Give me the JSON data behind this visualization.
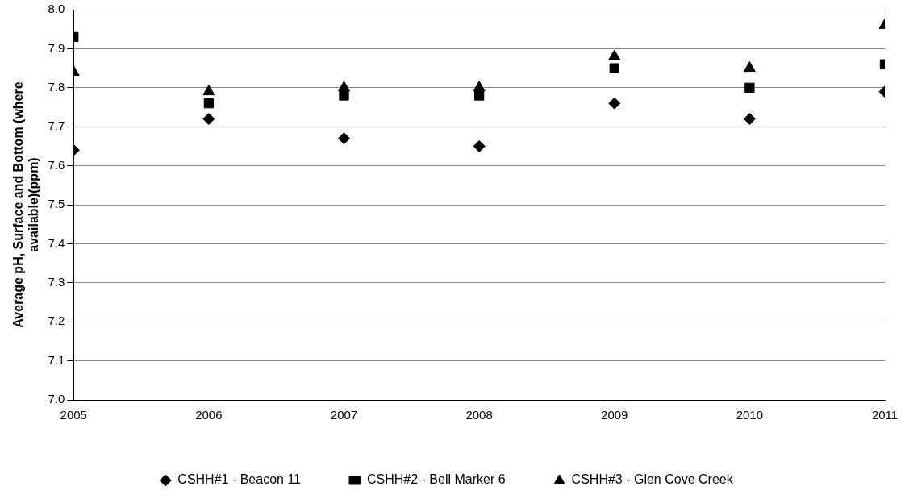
{
  "chart_data": {
    "type": "scatter",
    "ylabel": "Average pH, Surface and Bottom (where available)(ppm)",
    "x": [
      2005,
      2006,
      2007,
      2008,
      2009,
      2010,
      2011
    ],
    "xlim": [
      2005,
      2011
    ],
    "xticks": [
      2005,
      2006,
      2007,
      2008,
      2009,
      2010,
      2011
    ],
    "ylim": [
      7.0,
      8.0
    ],
    "yticks": [
      {
        "value": 7.0,
        "label": "7.0"
      },
      7.1,
      7.2,
      7.3,
      7.4,
      7.5,
      7.6,
      7.7,
      7.8,
      7.9,
      {
        "value": 8.0,
        "label": "8.0"
      }
    ],
    "grid": "y",
    "legend": "bottom",
    "series": [
      {
        "name": "CSHH#1 - Beacon 11",
        "color": "#000000",
        "marker": "diamond",
        "values": [
          7.64,
          7.72,
          7.67,
          7.65,
          7.76,
          7.72,
          7.79
        ]
      },
      {
        "name": "CSHH#2 - Bell Marker 6",
        "color": "#000000",
        "marker": "square",
        "values": [
          7.93,
          7.76,
          7.78,
          7.78,
          7.85,
          7.8,
          7.86
        ]
      },
      {
        "name": "CSHH#3 - Glen Cove Creek",
        "color": "#000000",
        "marker": "triangle",
        "values": [
          7.84,
          7.79,
          7.8,
          7.8,
          7.88,
          7.85,
          7.96
        ]
      }
    ]
  }
}
